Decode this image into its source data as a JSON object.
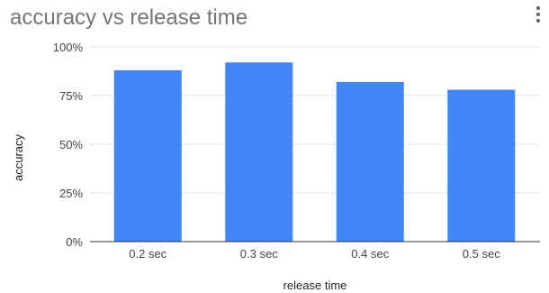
{
  "menu": {
    "icon": "more-vertical-icon"
  },
  "colors": {
    "bar": "#4285f4",
    "grid": "#e0e0e0",
    "axis": "#333333",
    "title": "#757575"
  },
  "chart_data": {
    "type": "bar",
    "title": "accuracy vs release time",
    "xlabel": "release time",
    "ylabel": "accuracy",
    "categories": [
      "0.2 sec",
      "0.3 sec",
      "0.4 sec",
      "0.5 sec"
    ],
    "values": [
      0.88,
      0.92,
      0.82,
      0.78
    ],
    "ylim": [
      0,
      1
    ],
    "yticks": [
      0,
      0.25,
      0.5,
      0.75,
      1
    ],
    "ytick_labels": [
      "0%",
      "25%",
      "50%",
      "75%",
      "100%"
    ],
    "grid": true,
    "legend": "none"
  }
}
